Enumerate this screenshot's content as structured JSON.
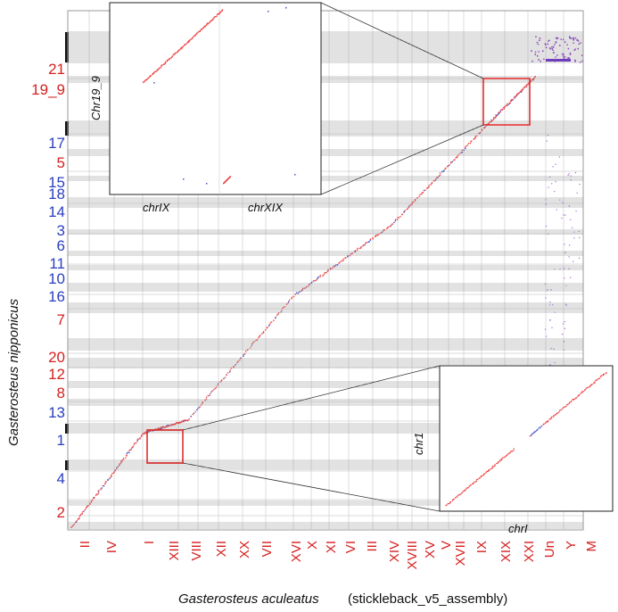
{
  "chart_data": {
    "type": "scatter",
    "xlabel": "Gasterosteus aculeatus",
    "xlabel_note": "(stickleback_v5_assembly)",
    "ylabel": "Gasterosteus nipponicus",
    "x_ticks": [
      {
        "label": "II",
        "color": "#d62020"
      },
      {
        "label": "IV",
        "color": "#d62020"
      },
      {
        "label": "I",
        "color": "#d62020"
      },
      {
        "label": "XIII",
        "color": "#d62020"
      },
      {
        "label": "VIII",
        "color": "#d62020"
      },
      {
        "label": "XII",
        "color": "#d62020"
      },
      {
        "label": "XX",
        "color": "#d62020"
      },
      {
        "label": "VII",
        "color": "#d62020"
      },
      {
        "label": "XVI",
        "color": "#d62020"
      },
      {
        "label": "X",
        "color": "#d62020"
      },
      {
        "label": "XI",
        "color": "#d62020"
      },
      {
        "label": "VI",
        "color": "#d62020"
      },
      {
        "label": "III",
        "color": "#d62020"
      },
      {
        "label": "XIV",
        "color": "#d62020"
      },
      {
        "label": "XVIII",
        "color": "#d62020"
      },
      {
        "label": "XV",
        "color": "#d62020"
      },
      {
        "label": "V",
        "color": "#d62020"
      },
      {
        "label": "XVII",
        "color": "#d62020"
      },
      {
        "label": "IX",
        "color": "#d62020"
      },
      {
        "label": "XIX",
        "color": "#d62020"
      },
      {
        "label": "XXI",
        "color": "#d62020"
      },
      {
        "label": "Un",
        "color": "#d62020"
      },
      {
        "label": "Y",
        "color": "#d62020"
      },
      {
        "label": "M",
        "color": "#d62020"
      }
    ],
    "y_ticks": [
      {
        "label": "21",
        "color": "#d62020"
      },
      {
        "label": "19_9",
        "color": "#d62020"
      },
      {
        "label": "17",
        "color": "#2a3fc0"
      },
      {
        "label": "5",
        "color": "#d62020"
      },
      {
        "label": "15",
        "color": "#2a3fc0"
      },
      {
        "label": "18",
        "color": "#2a3fc0"
      },
      {
        "label": "14",
        "color": "#2a3fc0"
      },
      {
        "label": "3",
        "color": "#2a3fc0"
      },
      {
        "label": "6",
        "color": "#2a3fc0"
      },
      {
        "label": "11",
        "color": "#2a3fc0"
      },
      {
        "label": "10",
        "color": "#2a3fc0"
      },
      {
        "label": "16",
        "color": "#2a3fc0"
      },
      {
        "label": "7",
        "color": "#d62020"
      },
      {
        "label": "20",
        "color": "#d62020"
      },
      {
        "label": "12",
        "color": "#d62020"
      },
      {
        "label": "8",
        "color": "#d62020"
      },
      {
        "label": "13",
        "color": "#2a3fc0"
      },
      {
        "label": "1",
        "color": "#2a3fc0"
      },
      {
        "label": "4",
        "color": "#2a3fc0"
      },
      {
        "label": "2",
        "color": "#d62020"
      }
    ],
    "insets": [
      {
        "name": "inset-chr19-9",
        "xlabels": [
          "chrIX",
          "chrXIX"
        ],
        "ylabel": "Chr19_9"
      },
      {
        "name": "inset-chr1",
        "xlabel": "chrI",
        "ylabel": "chr1"
      }
    ],
    "colors": {
      "diagonal": "#ee4444",
      "accent_blue": "#2a3fc0",
      "accent_red": "#d62020",
      "dots": "#9933cc",
      "box": "#e02020"
    }
  }
}
